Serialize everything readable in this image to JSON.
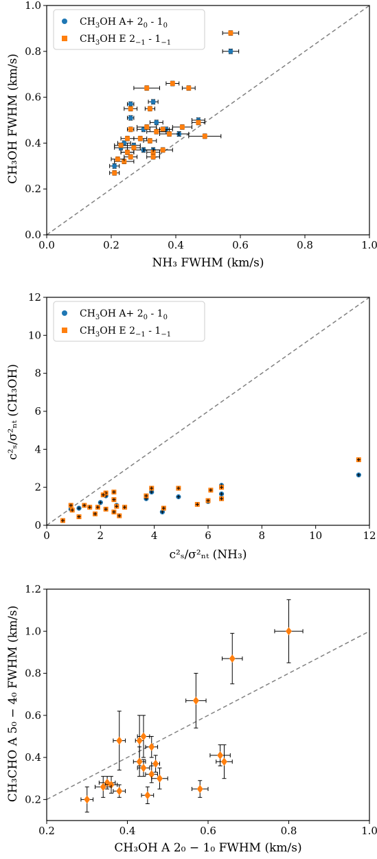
{
  "figure": {
    "colors": {
      "blue": "#1f77b4",
      "orange": "#ff7f0e",
      "diagonal": "#808080"
    }
  },
  "chart_data": [
    {
      "type": "scatter",
      "xlabel": "NH3 FWHM (km/s)",
      "ylabel": "CH3OH FWHM (km/s)",
      "xlim": [
        0,
        1.0
      ],
      "ylim": [
        0,
        1.0
      ],
      "xticks": [
        0.0,
        0.2,
        0.4,
        0.6,
        0.8,
        1.0
      ],
      "yticks": [
        0.0,
        0.2,
        0.4,
        0.6,
        0.8,
        1.0
      ],
      "tick_format": 1,
      "reference_line": "y = x",
      "legend": {
        "placement": "top-left",
        "entries": [
          {
            "sub": "3",
            "mid": "OH A+ 2",
            "sub2": "0",
            "mid2": " - 1",
            "sub3": "0"
          },
          {
            "sub": "3",
            "mid": "OH E 2",
            "sub2": "−1",
            "mid2": " - 1",
            "sub3": "−1"
          }
        ]
      },
      "series": [
        {
          "name": "CH3OH A+ 2_0 - 1_0",
          "marker": "circle",
          "color": "#1f77b4",
          "points": [
            [
              0.57,
              0.8,
              0.025,
              0.01
            ],
            [
              0.21,
              0.3,
              0.015,
              0.01
            ],
            [
              0.26,
              0.57,
              0.01,
              0.01
            ],
            [
              0.33,
              0.58,
              0.015,
              0.01
            ],
            [
              0.26,
              0.51,
              0.01,
              0.01
            ],
            [
              0.34,
              0.49,
              0.02,
              0.01
            ],
            [
              0.47,
              0.5,
              0.02,
              0.01
            ],
            [
              0.24,
              0.4,
              0.02,
              0.01
            ],
            [
              0.27,
              0.39,
              0.02,
              0.01
            ],
            [
              0.3,
              0.37,
              0.03,
              0.01
            ],
            [
              0.33,
              0.37,
              0.03,
              0.01
            ],
            [
              0.37,
              0.46,
              0.02,
              0.01
            ],
            [
              0.25,
              0.36,
              0.02,
              0.01
            ],
            [
              0.23,
              0.38,
              0.02,
              0.01
            ],
            [
              0.3,
              0.46,
              0.02,
              0.01
            ],
            [
              0.41,
              0.44,
              0.03,
              0.01
            ]
          ]
        },
        {
          "name": "CH3OH E 2_-1 - 1_-1",
          "marker": "square",
          "color": "#ff7f0e",
          "points": [
            [
              0.57,
              0.88,
              0.025,
              0.01
            ],
            [
              0.39,
              0.66,
              0.02,
              0.01
            ],
            [
              0.44,
              0.64,
              0.02,
              0.01
            ],
            [
              0.31,
              0.64,
              0.04,
              0.01
            ],
            [
              0.32,
              0.55,
              0.015,
              0.01
            ],
            [
              0.26,
              0.55,
              0.02,
              0.01
            ],
            [
              0.21,
              0.27,
              0.015,
              0.01
            ],
            [
              0.47,
              0.49,
              0.02,
              0.01
            ],
            [
              0.26,
              0.46,
              0.01,
              0.01
            ],
            [
              0.31,
              0.47,
              0.03,
              0.01
            ],
            [
              0.36,
              0.46,
              0.02,
              0.01
            ],
            [
              0.42,
              0.47,
              0.03,
              0.01
            ],
            [
              0.49,
              0.43,
              0.05,
              0.01
            ],
            [
              0.32,
              0.41,
              0.02,
              0.01
            ],
            [
              0.25,
              0.42,
              0.02,
              0.01
            ],
            [
              0.29,
              0.42,
              0.02,
              0.01
            ],
            [
              0.23,
              0.39,
              0.02,
              0.01
            ],
            [
              0.27,
              0.38,
              0.02,
              0.01
            ],
            [
              0.33,
              0.36,
              0.02,
              0.01
            ],
            [
              0.36,
              0.37,
              0.03,
              0.01
            ],
            [
              0.33,
              0.34,
              0.02,
              0.01
            ],
            [
              0.26,
              0.34,
              0.02,
              0.01
            ],
            [
              0.24,
              0.32,
              0.03,
              0.01
            ],
            [
              0.22,
              0.33,
              0.02,
              0.01
            ],
            [
              0.25,
              0.36,
              0.02,
              0.01
            ],
            [
              0.34,
              0.45,
              0.03,
              0.01
            ],
            [
              0.38,
              0.44,
              0.03,
              0.01
            ]
          ]
        }
      ]
    },
    {
      "type": "scatter",
      "xlabel": "c_s^2/σ_nt^2 (NH3)",
      "ylabel": "c_s^2/σ_nt^2 (CH3OH)",
      "xlim": [
        0,
        12
      ],
      "ylim": [
        0,
        12
      ],
      "xticks": [
        0,
        2,
        4,
        6,
        8,
        10,
        12
      ],
      "yticks": [
        0,
        2,
        4,
        6,
        8,
        10,
        12
      ],
      "tick_format": 0,
      "reference_line": "y = x",
      "legend": {
        "placement": "top-left",
        "entries": [
          {
            "sub": "3",
            "mid": "OH A+ 2",
            "sub2": "0",
            "mid2": " - 1",
            "sub3": "0"
          },
          {
            "sub": "3",
            "mid": "OH E 2",
            "sub2": "−1",
            "mid2": " - 1",
            "sub3": "−1"
          }
        ]
      },
      "series": [
        {
          "name": "CH3OH A+ 2_0 - 1_0",
          "marker": "circle",
          "color": "#1f77b4",
          "points": [
            [
              11.6,
              2.65,
              0,
              0
            ],
            [
              6.5,
              2.1,
              0,
              0
            ],
            [
              6.5,
              1.65,
              0,
              0
            ],
            [
              6.0,
              1.25,
              0,
              0
            ],
            [
              4.9,
              1.5,
              0,
              0
            ],
            [
              4.3,
              0.7,
              0,
              0
            ],
            [
              3.9,
              1.75,
              0,
              0
            ],
            [
              3.7,
              1.4,
              0,
              0
            ],
            [
              2.6,
              1.05,
              0,
              0
            ],
            [
              2.2,
              1.55,
              0,
              0
            ],
            [
              2.0,
              1.2,
              0,
              0
            ],
            [
              1.6,
              0.95,
              0,
              0
            ],
            [
              1.2,
              0.9,
              0,
              0
            ],
            [
              0.9,
              0.85,
              0,
              0
            ]
          ]
        },
        {
          "name": "CH3OH E 2_-1 - 1_-1",
          "marker": "square",
          "color": "#ff7f0e",
          "points": [
            [
              11.6,
              3.45,
              0,
              0
            ],
            [
              6.5,
              2.0,
              0,
              0
            ],
            [
              6.5,
              1.4,
              0,
              0
            ],
            [
              6.1,
              1.85,
              0,
              0
            ],
            [
              6.0,
              1.3,
              0,
              0
            ],
            [
              5.6,
              1.1,
              0,
              0
            ],
            [
              4.9,
              1.95,
              0,
              0
            ],
            [
              4.35,
              0.9,
              0,
              0
            ],
            [
              3.9,
              1.95,
              0,
              0
            ],
            [
              3.7,
              1.55,
              0,
              0
            ],
            [
              2.9,
              0.95,
              0,
              0
            ],
            [
              2.7,
              0.5,
              0,
              0
            ],
            [
              2.6,
              1.0,
              0,
              0
            ],
            [
              2.5,
              1.75,
              0,
              0
            ],
            [
              2.5,
              1.35,
              0,
              0
            ],
            [
              2.5,
              0.7,
              0,
              0
            ],
            [
              2.2,
              1.7,
              0,
              0
            ],
            [
              2.1,
              1.6,
              0,
              0
            ],
            [
              2.2,
              0.85,
              0,
              0
            ],
            [
              1.8,
              0.6,
              0,
              0
            ],
            [
              1.9,
              0.95,
              0,
              0
            ],
            [
              1.6,
              0.95,
              0,
              0
            ],
            [
              1.4,
              1.05,
              0,
              0
            ],
            [
              1.2,
              0.45,
              0,
              0
            ],
            [
              0.9,
              1.05,
              0,
              0
            ],
            [
              0.95,
              0.8,
              0,
              0
            ],
            [
              0.6,
              0.25,
              0,
              0
            ]
          ]
        }
      ]
    },
    {
      "type": "scatter",
      "xlabel": "CH3OH A 2_0 − 1_0 FWHM (km/s)",
      "ylabel": "CH3CHO A 5_0 − 4_0 FWHM (km/s)",
      "xlim": [
        0.2,
        1.0
      ],
      "ylim": [
        0.1,
        1.2
      ],
      "xticks": [
        0.2,
        0.4,
        0.6,
        0.8,
        1.0
      ],
      "yticks": [
        0.2,
        0.4,
        0.6,
        0.8,
        1.0,
        1.2
      ],
      "tick_format": 1,
      "reference_line": "y = x",
      "series": [
        {
          "name": "",
          "marker": "diamond",
          "color": "#ff7f0e",
          "points": [
            [
              0.8,
              1.0,
              0.035,
              0.15
            ],
            [
              0.66,
              0.87,
              0.025,
              0.12
            ],
            [
              0.57,
              0.67,
              0.025,
              0.13
            ],
            [
              0.38,
              0.48,
              0.015,
              0.14
            ],
            [
              0.43,
              0.48,
              0.01,
              0.12
            ],
            [
              0.44,
              0.5,
              0.015,
              0.1
            ],
            [
              0.46,
              0.45,
              0.015,
              0.05
            ],
            [
              0.47,
              0.37,
              0.01,
              0.04
            ],
            [
              0.43,
              0.38,
              0.015,
              0.07
            ],
            [
              0.44,
              0.35,
              0.015,
              0.04
            ],
            [
              0.46,
              0.32,
              0.015,
              0.04
            ],
            [
              0.48,
              0.3,
              0.02,
              0.05
            ],
            [
              0.63,
              0.41,
              0.025,
              0.05
            ],
            [
              0.64,
              0.38,
              0.02,
              0.08
            ],
            [
              0.58,
              0.25,
              0.02,
              0.04
            ],
            [
              0.45,
              0.22,
              0.015,
              0.04
            ],
            [
              0.38,
              0.24,
              0.015,
              0.03
            ],
            [
              0.35,
              0.28,
              0.02,
              0.03
            ],
            [
              0.36,
              0.27,
              0.015,
              0.04
            ],
            [
              0.34,
              0.26,
              0.02,
              0.05
            ],
            [
              0.3,
              0.2,
              0.015,
              0.06
            ]
          ]
        }
      ]
    }
  ],
  "labels": {
    "p1_xlab": "NH₃ FWHM (km/s)",
    "p1_ylab": "CH₃OH FWHM (km/s)",
    "p2_xlab": "c²ₛ/σ²ₙₜ (NH₃)",
    "p2_ylab": "c²ₛ/σ²ₙₜ (CH₃OH)",
    "p3_xlab": "CH₃OH A 2₀ − 1₀ FWHM (km/s)",
    "p3_ylab": "CH₃CHO A 5₀ − 4₀ FWHM (km/s)",
    "legend_prefix": "CH"
  }
}
